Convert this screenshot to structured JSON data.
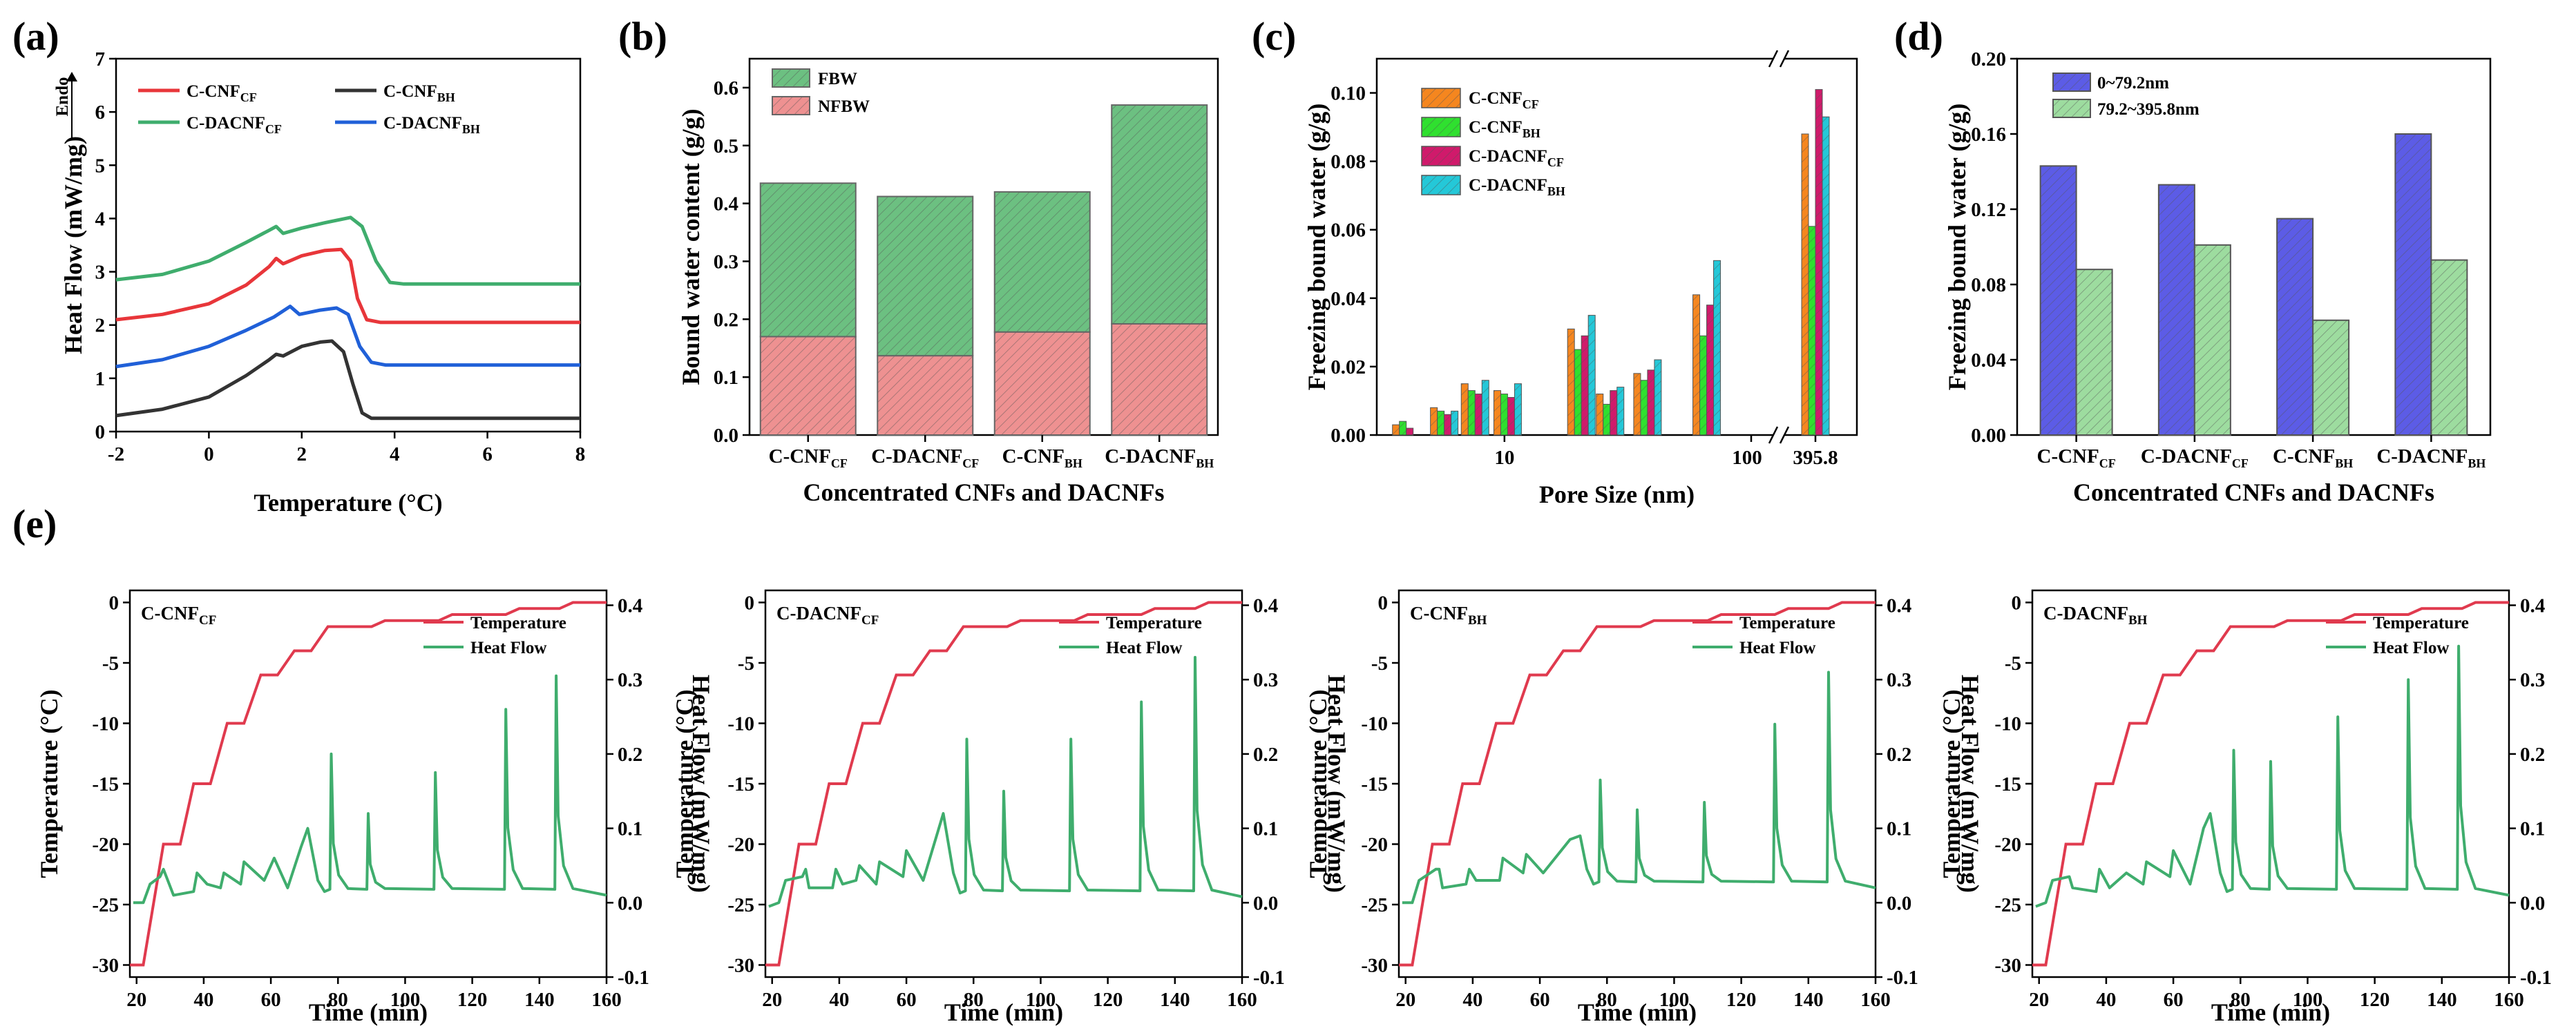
{
  "figure": {
    "labels": [
      "(a)",
      "(b)",
      "(c)",
      "(d)",
      "(e)"
    ]
  },
  "colors": {
    "red": "#e8363a",
    "black": "#333333",
    "green": "#3fad6d",
    "blue": "#2060d8",
    "fbw": "#6cc081",
    "nfbw": "#ee9191",
    "orange": "#f5861f",
    "lime": "#2fe02f",
    "magenta": "#d01a6b",
    "cyan": "#24c8d8",
    "purple": "#5c5ce6",
    "lightgreen": "#9ddc9f",
    "temp": "#e03a4e",
    "heat": "#3fad6d"
  },
  "chart_data": [
    {
      "id": "a",
      "type": "line",
      "title": "(a)",
      "xlabel": "Temperature (°C)",
      "ylabel": "Heat Flow (mW/mg)",
      "endo_label": "Endo",
      "xlim": [
        -2,
        8
      ],
      "ylim": [
        0,
        7
      ],
      "xticks": [
        -2,
        0,
        2,
        4,
        6,
        8
      ],
      "yticks": [
        0,
        1,
        2,
        3,
        4,
        5,
        6,
        7
      ],
      "series": [
        {
          "name": "C-CNF",
          "sub": "CF",
          "color": "red",
          "points": [
            [
              -2,
              2.1
            ],
            [
              -1,
              2.2
            ],
            [
              0,
              2.4
            ],
            [
              0.8,
              2.75
            ],
            [
              1.3,
              3.1
            ],
            [
              1.45,
              3.25
            ],
            [
              1.6,
              3.15
            ],
            [
              2,
              3.3
            ],
            [
              2.5,
              3.4
            ],
            [
              2.85,
              3.42
            ],
            [
              3.05,
              3.2
            ],
            [
              3.2,
              2.5
            ],
            [
              3.4,
              2.1
            ],
            [
              3.7,
              2.05
            ],
            [
              8,
              2.05
            ]
          ]
        },
        {
          "name": "C-CNF",
          "sub": "BH",
          "color": "black",
          "points": [
            [
              -2,
              0.3
            ],
            [
              -1,
              0.42
            ],
            [
              0,
              0.65
            ],
            [
              0.8,
              1.05
            ],
            [
              1.3,
              1.35
            ],
            [
              1.45,
              1.45
            ],
            [
              1.6,
              1.42
            ],
            [
              2,
              1.6
            ],
            [
              2.4,
              1.68
            ],
            [
              2.65,
              1.7
            ],
            [
              2.9,
              1.5
            ],
            [
              3.1,
              0.9
            ],
            [
              3.3,
              0.35
            ],
            [
              3.5,
              0.25
            ],
            [
              8,
              0.25
            ]
          ]
        },
        {
          "name": "C-DACNF",
          "sub": "CF",
          "color": "green",
          "points": [
            [
              -2,
              2.85
            ],
            [
              -1,
              2.95
            ],
            [
              0,
              3.2
            ],
            [
              0.8,
              3.55
            ],
            [
              1.3,
              3.78
            ],
            [
              1.45,
              3.85
            ],
            [
              1.6,
              3.72
            ],
            [
              2,
              3.82
            ],
            [
              2.5,
              3.92
            ],
            [
              3.05,
              4.02
            ],
            [
              3.3,
              3.85
            ],
            [
              3.6,
              3.2
            ],
            [
              3.9,
              2.8
            ],
            [
              4.2,
              2.77
            ],
            [
              8,
              2.77
            ]
          ]
        },
        {
          "name": "C-DACNF",
          "sub": "BH",
          "color": "blue",
          "points": [
            [
              -2,
              1.22
            ],
            [
              -1,
              1.35
            ],
            [
              0,
              1.6
            ],
            [
              0.8,
              1.9
            ],
            [
              1.4,
              2.15
            ],
            [
              1.75,
              2.35
            ],
            [
              1.95,
              2.2
            ],
            [
              2.4,
              2.28
            ],
            [
              2.75,
              2.32
            ],
            [
              3.0,
              2.2
            ],
            [
              3.25,
              1.6
            ],
            [
              3.5,
              1.3
            ],
            [
              3.8,
              1.25
            ],
            [
              8,
              1.25
            ]
          ]
        }
      ]
    },
    {
      "id": "b",
      "type": "bar",
      "stacked": true,
      "title": "(b)",
      "xlabel": "Concentrated CNFs and DACNFs",
      "ylabel": "Bound water content (g/g)",
      "categories": [
        {
          "base": "C-CNF",
          "sub": "CF"
        },
        {
          "base": "C-DACNF",
          "sub": "CF"
        },
        {
          "base": "C-CNF",
          "sub": "BH"
        },
        {
          "base": "C-DACNF",
          "sub": "BH"
        }
      ],
      "ylim": [
        0,
        0.65
      ],
      "yticks": [
        0,
        0.1,
        0.2,
        0.3,
        0.4,
        0.5,
        0.6
      ],
      "series": [
        {
          "name": "NFBW",
          "color": "nfbw",
          "values": [
            0.17,
            0.137,
            0.178,
            0.192
          ]
        },
        {
          "name": "FBW",
          "color": "fbw",
          "values": [
            0.265,
            0.275,
            0.242,
            0.378
          ]
        }
      ],
      "legend_order": [
        "FBW",
        "NFBW"
      ]
    },
    {
      "id": "c",
      "type": "bar",
      "title": "(c)",
      "xscale": "log",
      "axis_break": true,
      "xlabel": "Pore Size (nm)",
      "ylabel": "Freezing bound water (g/g)",
      "ylim": [
        0,
        0.11
      ],
      "yticks": [
        0.0,
        0.02,
        0.04,
        0.06,
        0.08,
        0.1
      ],
      "xtick_labels": [
        "10",
        "100",
        "395.8"
      ],
      "series": [
        {
          "name": "C-CNF",
          "sub": "CF",
          "color": "orange"
        },
        {
          "name": "C-CNF",
          "sub": "BH",
          "color": "lime"
        },
        {
          "name": "C-DACNF",
          "sub": "CF",
          "color": "magenta"
        },
        {
          "name": "C-DACNF",
          "sub": "BH",
          "color": "cyan"
        }
      ],
      "groups": [
        {
          "pore": 4.0,
          "values": [
            0.003,
            0.004,
            0.002,
            0.0
          ]
        },
        {
          "pore": 5.7,
          "values": [
            0.008,
            0.007,
            0.006,
            0.007
          ]
        },
        {
          "pore": 7.6,
          "values": [
            0.015,
            0.013,
            0.012,
            0.016
          ]
        },
        {
          "pore": 10.3,
          "values": [
            0.013,
            0.012,
            0.011,
            0.015
          ]
        },
        {
          "pore": 20.5,
          "values": [
            0.031,
            0.025,
            0.029,
            0.035
          ]
        },
        {
          "pore": 26.8,
          "values": [
            0.012,
            0.009,
            0.013,
            0.014
          ]
        },
        {
          "pore": 38.0,
          "values": [
            0.018,
            0.016,
            0.019,
            0.022
          ]
        },
        {
          "pore": 66.0,
          "values": [
            0.041,
            0.029,
            0.038,
            0.051
          ]
        },
        {
          "pore": 395.8,
          "values": [
            0.088,
            0.061,
            0.101,
            0.093
          ]
        }
      ]
    },
    {
      "id": "d",
      "type": "bar",
      "title": "(d)",
      "xlabel": "Concentrated CNFs and DACNFs",
      "ylabel": "Freezing bound water (g/g)",
      "categories": [
        {
          "base": "C-CNF",
          "sub": "CF"
        },
        {
          "base": "C-DACNF",
          "sub": "CF"
        },
        {
          "base": "C-CNF",
          "sub": "BH"
        },
        {
          "base": "C-DACNF",
          "sub": "BH"
        }
      ],
      "ylim": [
        0,
        0.2
      ],
      "yticks": [
        0.0,
        0.04,
        0.08,
        0.12,
        0.16,
        0.2
      ],
      "series": [
        {
          "name": "0~79.2nm",
          "color": "purple",
          "values": [
            0.143,
            0.133,
            0.115,
            0.16
          ]
        },
        {
          "name": "79.2~395.8nm",
          "color": "lightgreen",
          "values": [
            0.088,
            0.101,
            0.061,
            0.093
          ]
        }
      ]
    },
    {
      "id": "e",
      "type": "line",
      "title": "(e)",
      "dual_axis": true,
      "xlabel": "Time (min)",
      "ylabel": "Temperature (°C)",
      "y2label": "Heat Flow (mW/mg)",
      "xlim": [
        18,
        160
      ],
      "ylim": [
        -31,
        1
      ],
      "y2lim": [
        -0.1,
        0.42
      ],
      "xticks": [
        20,
        40,
        60,
        80,
        100,
        120,
        140,
        160
      ],
      "yticks": [
        -30,
        -25,
        -20,
        -15,
        -10,
        -5,
        0
      ],
      "y2ticks": [
        -0.1,
        0.0,
        0.1,
        0.2,
        0.3,
        0.4
      ],
      "legend": [
        "Temperature",
        "Heat Flow"
      ],
      "temperature_profile": [
        [
          18,
          -30
        ],
        [
          22,
          -30
        ],
        [
          28,
          -20
        ],
        [
          33,
          -20
        ],
        [
          37,
          -15
        ],
        [
          42,
          -15
        ],
        [
          47,
          -10
        ],
        [
          52,
          -10
        ],
        [
          57,
          -6
        ],
        [
          62,
          -6
        ],
        [
          67,
          -4
        ],
        [
          72,
          -4
        ],
        [
          77,
          -2
        ],
        [
          90,
          -2
        ],
        [
          94,
          -1.5
        ],
        [
          110,
          -1.5
        ],
        [
          114,
          -1
        ],
        [
          130,
          -1
        ],
        [
          134,
          -0.5
        ],
        [
          146,
          -0.5
        ],
        [
          150,
          0
        ],
        [
          160,
          0
        ]
      ],
      "panels": [
        {
          "name": "C-CNF",
          "sub": "CF",
          "baseline": 0.015,
          "steps": [
            [
              19,
              0.0
            ],
            [
              22,
              0.0
            ],
            [
              24,
              0.025
            ],
            [
              27,
              0.035
            ],
            [
              28,
              0.045
            ],
            [
              31,
              0.01
            ],
            [
              37,
              0.015
            ],
            [
              38,
              0.04
            ],
            [
              41,
              0.025
            ],
            [
              45,
              0.02
            ],
            [
              46,
              0.04
            ],
            [
              51,
              0.025
            ],
            [
              52,
              0.055
            ],
            [
              58,
              0.03
            ],
            [
              61,
              0.06
            ],
            [
              65,
              0.02
            ],
            [
              69,
              0.075
            ],
            [
              71,
              0.1
            ],
            [
              74,
              0.03
            ]
          ],
          "peaks": [
            [
              78,
              0.2
            ],
            [
              89,
              0.12
            ],
            [
              109,
              0.175
            ],
            [
              130,
              0.26
            ],
            [
              145,
              0.305
            ]
          ]
        },
        {
          "name": "C-DACNF",
          "sub": "CF",
          "baseline": 0.013,
          "steps": [
            [
              19,
              -0.005
            ],
            [
              22,
              0.0
            ],
            [
              24,
              0.03
            ],
            [
              29,
              0.035
            ],
            [
              30,
              0.045
            ],
            [
              31,
              0.02
            ],
            [
              38,
              0.02
            ],
            [
              39,
              0.045
            ],
            [
              41,
              0.025
            ],
            [
              45,
              0.03
            ],
            [
              46,
              0.05
            ],
            [
              51,
              0.025
            ],
            [
              52,
              0.055
            ],
            [
              59,
              0.035
            ],
            [
              60,
              0.07
            ],
            [
              65,
              0.03
            ],
            [
              69,
              0.09
            ],
            [
              71,
              0.12
            ],
            [
              74,
              0.04
            ]
          ],
          "peaks": [
            [
              78,
              0.22
            ],
            [
              89,
              0.15
            ],
            [
              109,
              0.22
            ],
            [
              130,
              0.27
            ],
            [
              146,
              0.33
            ]
          ]
        },
        {
          "name": "C-CNF",
          "sub": "BH",
          "baseline": 0.025,
          "steps": [
            [
              19,
              0.0
            ],
            [
              22,
              0.0
            ],
            [
              24,
              0.03
            ],
            [
              29,
              0.045
            ],
            [
              30,
              0.045
            ],
            [
              31,
              0.02
            ],
            [
              38,
              0.025
            ],
            [
              39,
              0.045
            ],
            [
              41,
              0.03
            ],
            [
              48,
              0.03
            ],
            [
              49,
              0.06
            ],
            [
              55,
              0.04
            ],
            [
              56,
              0.065
            ],
            [
              61,
              0.04
            ],
            [
              69,
              0.085
            ],
            [
              72,
              0.09
            ],
            [
              74,
              0.045
            ]
          ],
          "peaks": [
            [
              78,
              0.165
            ],
            [
              89,
              0.125
            ],
            [
              109,
              0.135
            ],
            [
              130,
              0.24
            ],
            [
              146,
              0.31
            ]
          ]
        },
        {
          "name": "C-DACNF",
          "sub": "BH",
          "baseline": 0.015,
          "steps": [
            [
              19,
              -0.005
            ],
            [
              22,
              0.0
            ],
            [
              24,
              0.03
            ],
            [
              29,
              0.035
            ],
            [
              30,
              0.02
            ],
            [
              37,
              0.015
            ],
            [
              38,
              0.045
            ],
            [
              41,
              0.02
            ],
            [
              46,
              0.04
            ],
            [
              51,
              0.025
            ],
            [
              52,
              0.055
            ],
            [
              59,
              0.035
            ],
            [
              60,
              0.07
            ],
            [
              65,
              0.025
            ],
            [
              69,
              0.1
            ],
            [
              71,
              0.12
            ],
            [
              74,
              0.04
            ]
          ],
          "peaks": [
            [
              78,
              0.205
            ],
            [
              89,
              0.19
            ],
            [
              109,
              0.25
            ],
            [
              130,
              0.3
            ],
            [
              145,
              0.345
            ]
          ]
        }
      ]
    }
  ]
}
